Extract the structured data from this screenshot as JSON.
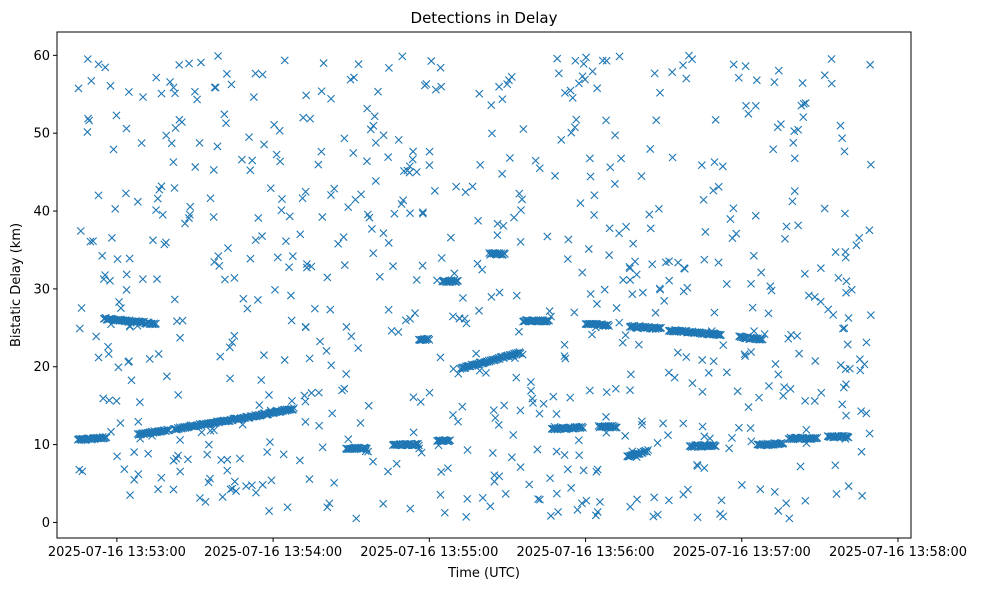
{
  "chart_data": {
    "type": "scatter",
    "title": "Detections in Delay",
    "xlabel": "Time (UTC)",
    "ylabel": "Bistatic Delay (km)",
    "xlim": [
      "2025-07-16 13:52:37",
      "2025-07-16 13:58:05"
    ],
    "ylim": [
      -2,
      63
    ],
    "x_ticks": [
      "2025-07-16 13:53:00",
      "2025-07-16 13:54:00",
      "2025-07-16 13:55:00",
      "2025-07-16 13:56:00",
      "2025-07-16 13:57:00",
      "2025-07-16 13:58:00"
    ],
    "y_ticks": [
      0,
      10,
      20,
      30,
      40,
      50,
      60
    ],
    "marker": "x",
    "color": "#1f77b4",
    "grid": false,
    "legend": false,
    "track_segments": [
      {
        "t_start": "2025-07-16 13:52:45",
        "t_end": "2025-07-16 13:52:56",
        "delay_start": 10.6,
        "delay_end": 10.9
      },
      {
        "t_start": "2025-07-16 13:53:08",
        "t_end": "2025-07-16 13:53:20",
        "delay_start": 11.3,
        "delay_end": 11.9
      },
      {
        "t_start": "2025-07-16 13:53:22",
        "t_end": "2025-07-16 13:53:50",
        "delay_start": 12.0,
        "delay_end": 13.5
      },
      {
        "t_start": "2025-07-16 13:53:50",
        "t_end": "2025-07-16 13:54:08",
        "delay_start": 13.5,
        "delay_end": 14.6
      },
      {
        "t_start": "2025-07-16 13:52:55",
        "t_end": "2025-07-16 13:53:15",
        "delay_start": 26.2,
        "delay_end": 25.5
      },
      {
        "t_start": "2025-07-16 13:54:28",
        "t_end": "2025-07-16 13:54:36",
        "delay_start": 9.5,
        "delay_end": 9.5
      },
      {
        "t_start": "2025-07-16 13:54:46",
        "t_end": "2025-07-16 13:54:56",
        "delay_start": 10.0,
        "delay_end": 10.0
      },
      {
        "t_start": "2025-07-16 13:54:56",
        "t_end": "2025-07-16 13:55:00",
        "delay_start": 23.5,
        "delay_end": 23.5
      },
      {
        "t_start": "2025-07-16 13:55:03",
        "t_end": "2025-07-16 13:55:08",
        "delay_start": 10.5,
        "delay_end": 10.5
      },
      {
        "t_start": "2025-07-16 13:55:05",
        "t_end": "2025-07-16 13:55:11",
        "delay_start": 31.0,
        "delay_end": 31.0
      },
      {
        "t_start": "2025-07-16 13:55:12",
        "t_end": "2025-07-16 13:55:35",
        "delay_start": 19.8,
        "delay_end": 21.8
      },
      {
        "t_start": "2025-07-16 13:55:23",
        "t_end": "2025-07-16 13:55:29",
        "delay_start": 34.5,
        "delay_end": 34.5
      },
      {
        "t_start": "2025-07-16 13:55:36",
        "t_end": "2025-07-16 13:55:46",
        "delay_start": 25.9,
        "delay_end": 25.9
      },
      {
        "t_start": "2025-07-16 13:55:47",
        "t_end": "2025-07-16 13:55:59",
        "delay_start": 12.0,
        "delay_end": 12.2
      },
      {
        "t_start": "2025-07-16 13:56:00",
        "t_end": "2025-07-16 13:56:09",
        "delay_start": 25.5,
        "delay_end": 25.3
      },
      {
        "t_start": "2025-07-16 13:56:05",
        "t_end": "2025-07-16 13:56:12",
        "delay_start": 12.3,
        "delay_end": 12.3
      },
      {
        "t_start": "2025-07-16 13:56:17",
        "t_end": "2025-07-16 13:56:29",
        "delay_start": 25.2,
        "delay_end": 24.9
      },
      {
        "t_start": "2025-07-16 13:56:16",
        "t_end": "2025-07-16 13:56:24",
        "delay_start": 8.5,
        "delay_end": 9.2
      },
      {
        "t_start": "2025-07-16 13:56:32",
        "t_end": "2025-07-16 13:56:52",
        "delay_start": 24.7,
        "delay_end": 24.1
      },
      {
        "t_start": "2025-07-16 13:56:40",
        "t_end": "2025-07-16 13:56:50",
        "delay_start": 9.8,
        "delay_end": 9.9
      },
      {
        "t_start": "2025-07-16 13:56:59",
        "t_end": "2025-07-16 13:57:08",
        "delay_start": 23.8,
        "delay_end": 23.5
      },
      {
        "t_start": "2025-07-16 13:57:06",
        "t_end": "2025-07-16 13:57:16",
        "delay_start": 9.9,
        "delay_end": 10.2
      },
      {
        "t_start": "2025-07-16 13:57:18",
        "t_end": "2025-07-16 13:57:29",
        "delay_start": 10.8,
        "delay_end": 10.8
      },
      {
        "t_start": "2025-07-16 13:57:33",
        "t_end": "2025-07-16 13:57:41",
        "delay_start": 11.0,
        "delay_end": 11.0
      }
    ],
    "clutter": {
      "t_start": "2025-07-16 13:52:45",
      "t_end": "2025-07-16 13:57:50",
      "delay_min": 0.5,
      "delay_max": 60,
      "count": 720
    }
  }
}
